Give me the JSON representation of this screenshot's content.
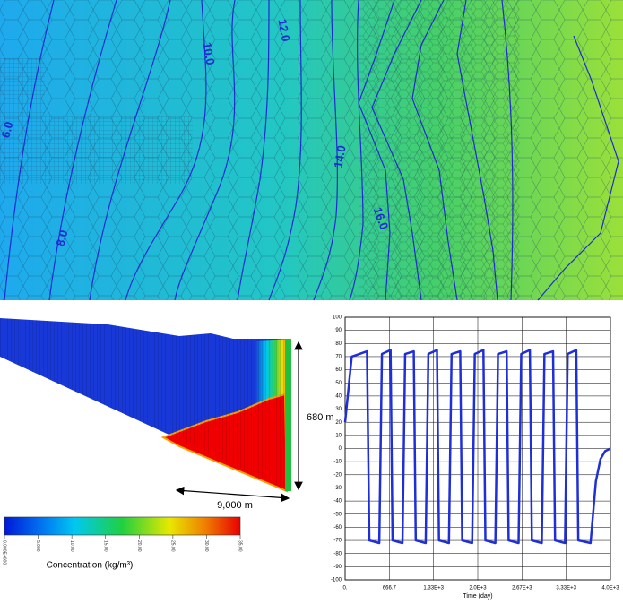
{
  "map": {
    "contour_labels": [
      "6.0",
      "8.0",
      "10.0",
      "12.0",
      "14.0",
      "16.0"
    ]
  },
  "section": {
    "height_label": "680 m",
    "length_label": "9,000 m"
  },
  "colorbar": {
    "title": "Concentration (kg/m³)",
    "lim": [
      0,
      35
    ],
    "ticks": [
      {
        "value": 0,
        "label": "0.000E+000"
      },
      {
        "value": 5,
        "label": "5.000"
      },
      {
        "value": 10,
        "label": "10.00"
      },
      {
        "value": 15,
        "label": "15.00"
      },
      {
        "value": 20,
        "label": "20.00"
      },
      {
        "value": 25,
        "label": "25.00"
      },
      {
        "value": 30,
        "label": "30.00"
      },
      {
        "value": 35,
        "label": "35.00"
      }
    ]
  },
  "chart_data": {
    "type": "line",
    "x_label": "Time (day)",
    "color": "#1f2fd8",
    "grid": true,
    "xlim": [
      0,
      4000
    ],
    "ylim": [
      -100,
      100
    ],
    "xticks": [
      {
        "value": 0,
        "label": "0."
      },
      {
        "value": 666.7,
        "label": "666.7"
      },
      {
        "value": 1333.3,
        "label": "1.33E+3"
      },
      {
        "value": 2000,
        "label": "2.0E+3"
      },
      {
        "value": 2666.7,
        "label": "2.67E+3"
      },
      {
        "value": 3333.3,
        "label": "3.33E+3"
      },
      {
        "value": 4000,
        "label": "4.0E+3"
      }
    ],
    "yticks": [
      -100,
      -90,
      -80,
      -70,
      -60,
      -50,
      -40,
      -30,
      -20,
      -10,
      0,
      10,
      20,
      30,
      40,
      50,
      60,
      70,
      80,
      90,
      100
    ],
    "x": [
      0,
      100,
      330,
      365,
      515,
      555,
      685,
      715,
      865,
      905,
      1035,
      1065,
      1215,
      1255,
      1385,
      1415,
      1565,
      1605,
      1735,
      1765,
      1915,
      1955,
      2085,
      2115,
      2265,
      2305,
      2435,
      2465,
      2615,
      2655,
      2785,
      2815,
      2965,
      3005,
      3135,
      3165,
      3315,
      3355,
      3485,
      3515,
      3700,
      3780,
      3850,
      3920,
      4000
    ],
    "values": [
      20,
      70,
      74,
      -70,
      -72,
      72,
      75,
      -70,
      -72,
      72,
      74,
      -70,
      -72,
      72,
      75,
      -70,
      -72,
      72,
      74,
      -70,
      -72,
      72,
      75,
      -70,
      -72,
      72,
      74,
      -70,
      -72,
      72,
      75,
      -70,
      -72,
      72,
      74,
      -70,
      -72,
      72,
      75,
      -70,
      -72,
      -25,
      -8,
      -2,
      0
    ]
  }
}
